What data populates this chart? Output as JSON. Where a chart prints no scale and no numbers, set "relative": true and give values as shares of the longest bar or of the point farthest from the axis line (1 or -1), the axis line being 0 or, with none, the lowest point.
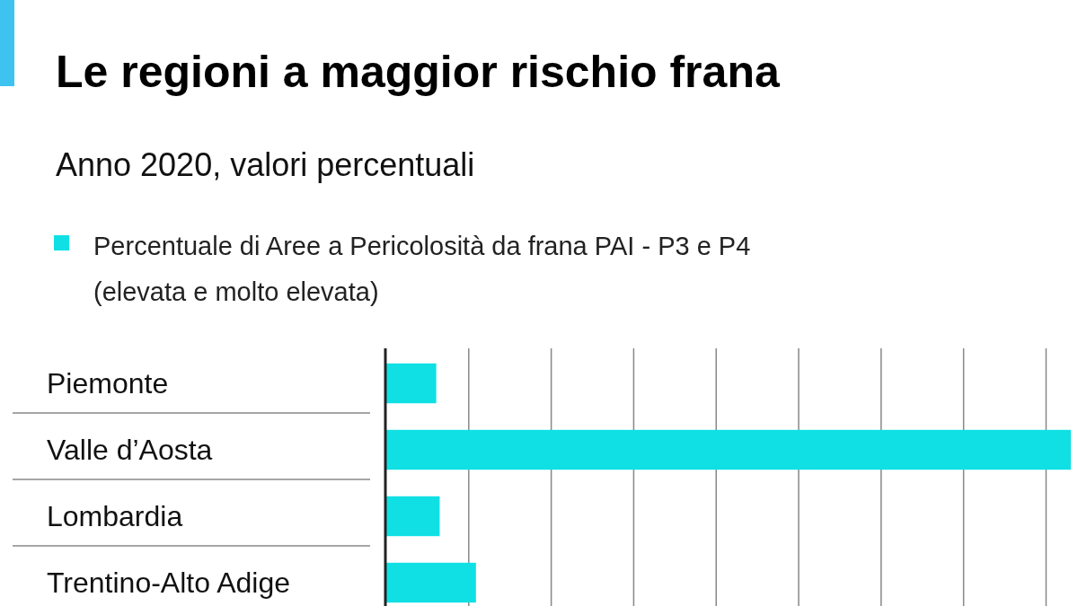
{
  "chart_data": {
    "type": "bar",
    "orientation": "horizontal",
    "relative": true,
    "title": "Le regioni a maggior rischio frana",
    "subtitle": "Anno 2020, valori percentuali",
    "categories": [
      "Piemonte",
      "Valle d’Aosta",
      "Lombardia",
      "Trentino-Alto Adige"
    ],
    "series": [
      {
        "name": "Percentuale di Aree a Pericolosità da frana PAI - P3 e P4 (elevata e molto elevata)",
        "color": "#10e0e4",
        "values": [
          0.073,
          1,
          0.078,
          0.131
        ]
      }
    ],
    "grid": "x",
    "legend": "top left"
  }
}
